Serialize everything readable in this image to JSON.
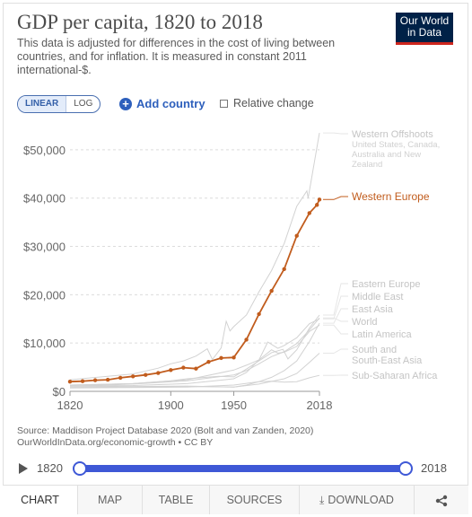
{
  "header": {
    "title": "GDP per capita, 1820 to 2018",
    "subtitle": "This data is adjusted for differences in the cost of living between countries, and for inflation. It is measured in constant 2011 international-$.",
    "logo_line1": "Our World",
    "logo_line2": "in Data"
  },
  "controls": {
    "linear_label": "LINEAR",
    "log_label": "LOG",
    "add_country_label": "Add country",
    "relative_change_label": "Relative change"
  },
  "chart_data": {
    "type": "line",
    "ylim": [
      0,
      55000
    ],
    "xlim": [
      1820,
      2018
    ],
    "y_ticks": [
      {
        "value": 0,
        "label": "$0"
      },
      {
        "value": 10000,
        "label": "$10,000"
      },
      {
        "value": 20000,
        "label": "$20,000"
      },
      {
        "value": 30000,
        "label": "$30,000"
      },
      {
        "value": 40000,
        "label": "$40,000"
      },
      {
        "value": 50000,
        "label": "$50,000"
      }
    ],
    "x_ticks": [
      {
        "value": 1820,
        "label": "1820"
      },
      {
        "value": 1900,
        "label": "1900"
      },
      {
        "value": 1950,
        "label": "1950"
      },
      {
        "value": 2018,
        "label": "2018"
      }
    ],
    "highlight_color": "#c15c1d",
    "other_color": "#d2d2d2",
    "series": [
      {
        "name": "Western Europe",
        "highlight": true,
        "points": [
          [
            1820,
            2000
          ],
          [
            1830,
            2100
          ],
          [
            1840,
            2300
          ],
          [
            1850,
            2400
          ],
          [
            1860,
            2800
          ],
          [
            1870,
            3100
          ],
          [
            1880,
            3400
          ],
          [
            1890,
            3800
          ],
          [
            1900,
            4400
          ],
          [
            1910,
            4900
          ],
          [
            1920,
            4700
          ],
          [
            1930,
            6100
          ],
          [
            1940,
            6900
          ],
          [
            1950,
            7000
          ],
          [
            1960,
            10700
          ],
          [
            1970,
            16000
          ],
          [
            1980,
            20800
          ],
          [
            1990,
            25300
          ],
          [
            2000,
            32200
          ],
          [
            2010,
            36900
          ],
          [
            2016,
            38600
          ],
          [
            2018,
            39700
          ]
        ]
      },
      {
        "name": "Western Offshoots",
        "sublabel_lines": [
          "United States, Canada,",
          "Australia and New",
          "Zealand"
        ],
        "highlight": false,
        "points": [
          [
            1820,
            2400
          ],
          [
            1850,
            3100
          ],
          [
            1870,
            3600
          ],
          [
            1890,
            4800
          ],
          [
            1900,
            5700
          ],
          [
            1910,
            6300
          ],
          [
            1920,
            7300
          ],
          [
            1929,
            8800
          ],
          [
            1933,
            6600
          ],
          [
            1940,
            9000
          ],
          [
            1944,
            14500
          ],
          [
            1947,
            12500
          ],
          [
            1950,
            13400
          ],
          [
            1960,
            15800
          ],
          [
            1970,
            20600
          ],
          [
            1980,
            25000
          ],
          [
            1990,
            30600
          ],
          [
            2000,
            38300
          ],
          [
            2008,
            41500
          ],
          [
            2009,
            40000
          ],
          [
            2018,
            53500
          ]
        ]
      },
      {
        "name": "Eastern Europe",
        "highlight": false,
        "points": [
          [
            1820,
            1300
          ],
          [
            1870,
            1600
          ],
          [
            1900,
            2200
          ],
          [
            1913,
            2600
          ],
          [
            1938,
            3100
          ],
          [
            1950,
            3000
          ],
          [
            1960,
            4600
          ],
          [
            1970,
            6300
          ],
          [
            1980,
            8000
          ],
          [
            1989,
            8700
          ],
          [
            1993,
            6700
          ],
          [
            2000,
            8600
          ],
          [
            2010,
            13100
          ],
          [
            2018,
            15800
          ]
        ]
      },
      {
        "name": "Middle East",
        "highlight": false,
        "points": [
          [
            1820,
            1100
          ],
          [
            1870,
            1200
          ],
          [
            1913,
            1600
          ],
          [
            1950,
            2600
          ],
          [
            1960,
            3900
          ],
          [
            1970,
            6500
          ],
          [
            1977,
            10200
          ],
          [
            1985,
            8900
          ],
          [
            1990,
            9500
          ],
          [
            2000,
            11100
          ],
          [
            2010,
            14000
          ],
          [
            2018,
            15000
          ]
        ]
      },
      {
        "name": "East Asia",
        "highlight": false,
        "points": [
          [
            1820,
            1100
          ],
          [
            1870,
            1000
          ],
          [
            1913,
            1100
          ],
          [
            1950,
            900
          ],
          [
            1960,
            1300
          ],
          [
            1970,
            2000
          ],
          [
            1980,
            2900
          ],
          [
            1990,
            4300
          ],
          [
            2000,
            6300
          ],
          [
            2010,
            10300
          ],
          [
            2018,
            14100
          ]
        ]
      },
      {
        "name": "World",
        "highlight": false,
        "points": [
          [
            1820,
            1100
          ],
          [
            1870,
            1500
          ],
          [
            1913,
            2200
          ],
          [
            1950,
            3400
          ],
          [
            1960,
            4300
          ],
          [
            1970,
            5700
          ],
          [
            1980,
            7200
          ],
          [
            1990,
            8200
          ],
          [
            2000,
            9900
          ],
          [
            2010,
            12700
          ],
          [
            2018,
            15200
          ]
        ]
      },
      {
        "name": "Latin America",
        "highlight": false,
        "points": [
          [
            1820,
            1300
          ],
          [
            1870,
            1600
          ],
          [
            1913,
            2400
          ],
          [
            1950,
            4400
          ],
          [
            1960,
            5400
          ],
          [
            1970,
            6500
          ],
          [
            1980,
            8600
          ],
          [
            1985,
            7900
          ],
          [
            1990,
            8100
          ],
          [
            2000,
            9300
          ],
          [
            2010,
            12400
          ],
          [
            2018,
            13700
          ]
        ]
      },
      {
        "name": "South and South-East Asia",
        "highlight": false,
        "points": [
          [
            1820,
            900
          ],
          [
            1870,
            900
          ],
          [
            1913,
            1000
          ],
          [
            1950,
            900
          ],
          [
            1970,
            1500
          ],
          [
            1990,
            2600
          ],
          [
            2000,
            3700
          ],
          [
            2010,
            6000
          ],
          [
            2018,
            7900
          ]
        ]
      },
      {
        "name": "Sub-Saharan Africa",
        "highlight": false,
        "points": [
          [
            1820,
            700
          ],
          [
            1870,
            800
          ],
          [
            1913,
            900
          ],
          [
            1950,
            1300
          ],
          [
            1970,
            2000
          ],
          [
            1980,
            2100
          ],
          [
            1990,
            1900
          ],
          [
            2000,
            2000
          ],
          [
            2010,
            2800
          ],
          [
            2018,
            3300
          ]
        ]
      }
    ]
  },
  "source": {
    "line1": "Source: Maddison Project Database 2020 (Bolt and van Zanden, 2020)",
    "line2": "OurWorldInData.org/economic-growth • CC BY"
  },
  "timeline": {
    "start": "1820",
    "end": "2018"
  },
  "tabs": {
    "chart": "CHART",
    "map": "MAP",
    "table": "TABLE",
    "sources": "SOURCES",
    "download": "DOWNLOAD"
  }
}
